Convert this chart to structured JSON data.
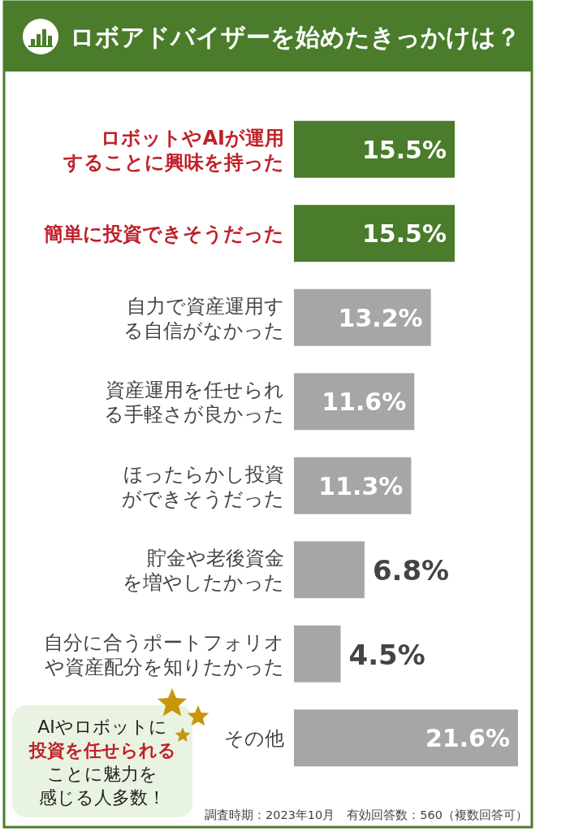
{
  "chart_data": {
    "type": "bar",
    "orientation": "horizontal",
    "title": "ロボアドバイザーを始めたきっかけは？",
    "categories": [
      "ロボットやAIが運用することに興味を持った",
      "簡単に投資できそうだった",
      "自力で資産運用する自信がなかった",
      "資産運用を任せられる手軽さが良かった",
      "ほったらかし投資ができそうだった",
      "貯金や老後資金を増やしたかった",
      "自分に合うポートフォリオや資産配分を知りたかった",
      "その他"
    ],
    "values": [
      15.5,
      15.5,
      13.2,
      11.6,
      11.3,
      6.8,
      4.5,
      21.6
    ],
    "colors": [
      "#4a7c2b",
      "#4a7c2b",
      "#a6a6a6",
      "#a6a6a6",
      "#a6a6a6",
      "#a6a6a6",
      "#a6a6a6",
      "#a6a6a6"
    ],
    "value_labels": [
      "15.5%",
      "15.5%",
      "13.2%",
      "11.6%",
      "11.3%",
      "6.8%",
      "4.5%",
      "21.6%"
    ],
    "annotations": [
      "AIやロボットに**投資を任せられる**ことに魅力を感じる人多数！",
      "調査時期：2023年10月　有効回答数：560（複数回答可）"
    ]
  }
}
